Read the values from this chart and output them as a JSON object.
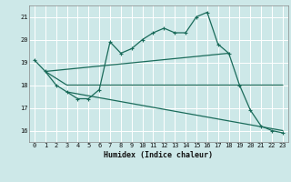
{
  "xlabel": "Humidex (Indice chaleur)",
  "bg_color": "#cde8e8",
  "grid_color": "#ffffff",
  "line_color": "#1a6b5a",
  "xlim": [
    -0.5,
    23.5
  ],
  "ylim": [
    15.5,
    21.5
  ],
  "yticks": [
    16,
    17,
    18,
    19,
    20,
    21
  ],
  "xticks": [
    0,
    1,
    2,
    3,
    4,
    5,
    6,
    7,
    8,
    9,
    10,
    11,
    12,
    13,
    14,
    15,
    16,
    17,
    18,
    19,
    20,
    21,
    22,
    23
  ],
  "line1_x": [
    0,
    1,
    2,
    3,
    4,
    5,
    6,
    7,
    8,
    9,
    10,
    11,
    12,
    13,
    14,
    15,
    16,
    17,
    18,
    19,
    20,
    21,
    22,
    23
  ],
  "line1_y": [
    19.1,
    18.6,
    18.0,
    17.7,
    17.4,
    17.4,
    17.8,
    19.9,
    19.4,
    19.6,
    20.0,
    20.3,
    20.5,
    20.3,
    20.3,
    21.0,
    21.2,
    19.8,
    19.4,
    18.0,
    16.9,
    16.2,
    16.0,
    15.9
  ],
  "line2_x": [
    1,
    3,
    23
  ],
  "line2_y": [
    18.6,
    18.0,
    18.0
  ],
  "line3_x": [
    1,
    18
  ],
  "line3_y": [
    18.6,
    19.4
  ],
  "line4_x": [
    3,
    23
  ],
  "line4_y": [
    17.7,
    16.0
  ]
}
